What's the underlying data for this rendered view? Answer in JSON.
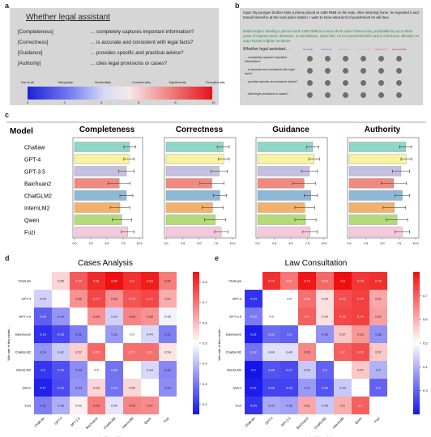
{
  "panel_a": {
    "letter": "a",
    "title": "Whether legal assistant",
    "rows": [
      {
        "label": "[Completeness]",
        "text": "... completely captures important information?"
      },
      {
        "label": "[Correctness]",
        "text": "... is accurate and consistent with legal facts?"
      },
      {
        "label": "[Guidance]",
        "text": "... provides specific and practical advice?"
      },
      {
        "label": "[Authority]",
        "text": "... cites legal provisions or cases?"
      }
    ],
    "scale_labels": [
      "Not at all",
      "Marginally",
      "Moderately",
      "Considerably",
      "Significantly",
      "Exceptionally"
    ],
    "scale_ticks": [
      "0",
      "2",
      "4",
      "6",
      "8",
      "10"
    ]
  },
  "panel_b": {
    "letter": "b",
    "input_text": "Input: My younger brother stole a phone priced at 1480 RMB on the train. After returning home, he regretted it and turned himself in at the local police station. I want to know what kind of punishment he will face.",
    "output_text": "Model output: Stealing a phone worth 1480 RMB is a minor theft under Chinese law, punishable by up to three years of imprisonment, detention, or surveillance, and a fine. As he turned himself in and is a first-time offender, he may receive a lighter sentence.",
    "header": "Whether legal assistant...",
    "scale": [
      "Not at all",
      "Marginally",
      "Moderately",
      "Considerably",
      "Significantly",
      "Exceptionally"
    ],
    "scale_colors": [
      "#2b57c9",
      "#5b78d6",
      "#8f9fe0",
      "#e8a4a4",
      "#de6868",
      "#c92a2a"
    ],
    "questions": [
      "... completely captures important information?",
      "... is accurate and consistent with legal facts?",
      "... provides specific and practical advice?",
      "... cites legal provisions or cases?"
    ]
  },
  "panel_c": {
    "letter": "c",
    "model_header": "Model",
    "metrics": [
      "Completeness",
      "Correctness",
      "Guidance",
      "Authority"
    ],
    "models": [
      "Chatlaw",
      "GPT-4",
      "GPT-3.5",
      "Baichuan2",
      "ChatGLM2",
      "InternLM2",
      "Qwen",
      "Fuzi"
    ],
    "colors": [
      "#8fd6c6",
      "#f7f3a3",
      "#c6c0e0",
      "#f08a80",
      "#8db8d6",
      "#f2b26d",
      "#b4da7a",
      "#f6c8de"
    ],
    "ticks": [
      "0.0",
      "2.5",
      "5.0",
      "7.5",
      "10.0"
    ]
  },
  "panel_d": {
    "letter": "d",
    "title": "Cases Analysis",
    "ylabel": "Win rate of this model ...",
    "xlabel": "... against this model",
    "colorbar_ticks": [
      "0.8",
      "0.7",
      "0.6",
      "0.5",
      "0.4",
      "0.3",
      "0.2"
    ]
  },
  "panel_e": {
    "letter": "e",
    "title": "Law Consultation",
    "ylabel": "Win rate of this model ...",
    "xlabel": "... against this model",
    "colorbar_ticks": [
      "0.7",
      "0.6",
      "0.5",
      "0.4",
      "0.3"
    ]
  },
  "heat_models_y": [
    "ChatLaw",
    "GPT-4",
    "GPT-3.5",
    "Baichuan2",
    "ChatGLM2",
    "InternLM2",
    "Qwen",
    "Fuzi"
  ],
  "heat_models_x": [
    "ChatLaw",
    "GPT-4",
    "GPT-3.5",
    "Baichuan2",
    "ChatGLM2",
    "InternLM2",
    "Qwen",
    "Fuzi"
  ],
  "chart_data": [
    {
      "type": "bar",
      "title": "Completeness",
      "categories": [
        "Chatlaw",
        "GPT-4",
        "GPT-3.5",
        "Baichuan2",
        "ChatGLM2",
        "InternLM2",
        "Qwen",
        "Fuzi"
      ],
      "values": [
        8.5,
        8.4,
        8.0,
        6.9,
        8.0,
        7.0,
        7.3,
        8.2
      ],
      "errors": [
        0.9,
        0.8,
        1.2,
        1.7,
        1.0,
        1.5,
        1.5,
        1.0
      ],
      "xlim": [
        0,
        10
      ]
    },
    {
      "type": "bar",
      "title": "Correctness",
      "categories": [
        "Chatlaw",
        "GPT-4",
        "GPT-3.5",
        "Baichuan2",
        "ChatGLM2",
        "InternLM2",
        "Qwen",
        "Fuzi"
      ],
      "values": [
        8.6,
        8.7,
        8.0,
        6.9,
        8.1,
        7.0,
        7.4,
        8.3
      ],
      "errors": [
        0.9,
        0.8,
        1.2,
        1.8,
        1.0,
        1.6,
        1.6,
        1.0
      ],
      "xlim": [
        0,
        10
      ]
    },
    {
      "type": "bar",
      "title": "Guidance",
      "categories": [
        "Chatlaw",
        "GPT-4",
        "GPT-3.5",
        "Baichuan2",
        "ChatGLM2",
        "InternLM2",
        "Qwen",
        "Fuzi"
      ],
      "values": [
        8.3,
        8.5,
        7.8,
        7.0,
        8.0,
        7.1,
        7.2,
        7.9
      ],
      "errors": [
        0.9,
        0.8,
        1.2,
        1.7,
        1.0,
        1.5,
        1.6,
        1.1
      ],
      "xlim": [
        0,
        10
      ]
    },
    {
      "type": "bar",
      "title": "Authority",
      "categories": [
        "Chatlaw",
        "GPT-4",
        "GPT-3.5",
        "Baichuan2",
        "ChatGLM2",
        "InternLM2",
        "Qwen",
        "Fuzi"
      ],
      "values": [
        8.5,
        8.6,
        7.8,
        6.7,
        8.0,
        6.8,
        7.2,
        8.0
      ],
      "errors": [
        0.9,
        0.8,
        1.3,
        1.9,
        1.1,
        1.7,
        1.6,
        1.1
      ],
      "xlim": [
        0,
        10
      ]
    },
    {
      "type": "heatmap",
      "title": "Cases Analysis",
      "vmin": 0.15,
      "vmax": 0.85,
      "values": [
        [
          null,
          0.56,
          0.74,
          0.81,
          0.85,
          0.8,
          0.83,
          0.69
        ],
        [
          0.43,
          null,
          0.66,
          0.77,
          0.66,
          0.75,
          0.77,
          0.62
        ],
        [
          0.26,
          0.34,
          null,
          0.66,
          0.43,
          0.68,
          0.66,
          0.48
        ],
        [
          0.19,
          0.23,
          0.31,
          null,
          0.35,
          0.5,
          0.44,
          0.31
        ],
        [
          0.34,
          0.42,
          0.57,
          0.72,
          null,
          0.71,
          0.71,
          0.54
        ],
        [
          0.2,
          0.24,
          0.33,
          0.5,
          0.29,
          null,
          0.44,
          0.32
        ],
        [
          0.17,
          0.23,
          0.34,
          0.56,
          0.29,
          0.56,
          null,
          0.33
        ],
        [
          0.31,
          0.38,
          0.52,
          0.69,
          0.46,
          0.68,
          0.67,
          null
        ]
      ]
    },
    {
      "type": "heatmap",
      "title": "Law Consultation",
      "vmin": 0.2,
      "vmax": 0.8,
      "values": [
        [
          null,
          0.76,
          0.67,
          0.79,
          0.69,
          0.8,
          0.75,
          0.76
        ],
        [
          0.24,
          null,
          0.5,
          0.68,
          0.54,
          0.72,
          0.74,
          0.61
        ],
        [
          0.33,
          0.5,
          null,
          0.7,
          0.54,
          0.73,
          0.74,
          0.62
        ],
        [
          0.21,
          0.31,
          0.3,
          null,
          0.36,
          0.57,
          0.63,
          0.36
        ],
        [
          0.32,
          0.46,
          0.46,
          0.65,
          null,
          0.7,
          0.72,
          0.57
        ],
        [
          0.2,
          0.28,
          0.27,
          0.43,
          0.3,
          null,
          0.57,
          0.4
        ],
        [
          0.21,
          0.26,
          0.26,
          0.37,
          0.28,
          0.43,
          null,
          0.3
        ],
        [
          0.24,
          0.39,
          0.38,
          0.61,
          0.43,
          0.6,
          0.7,
          null
        ]
      ]
    }
  ]
}
